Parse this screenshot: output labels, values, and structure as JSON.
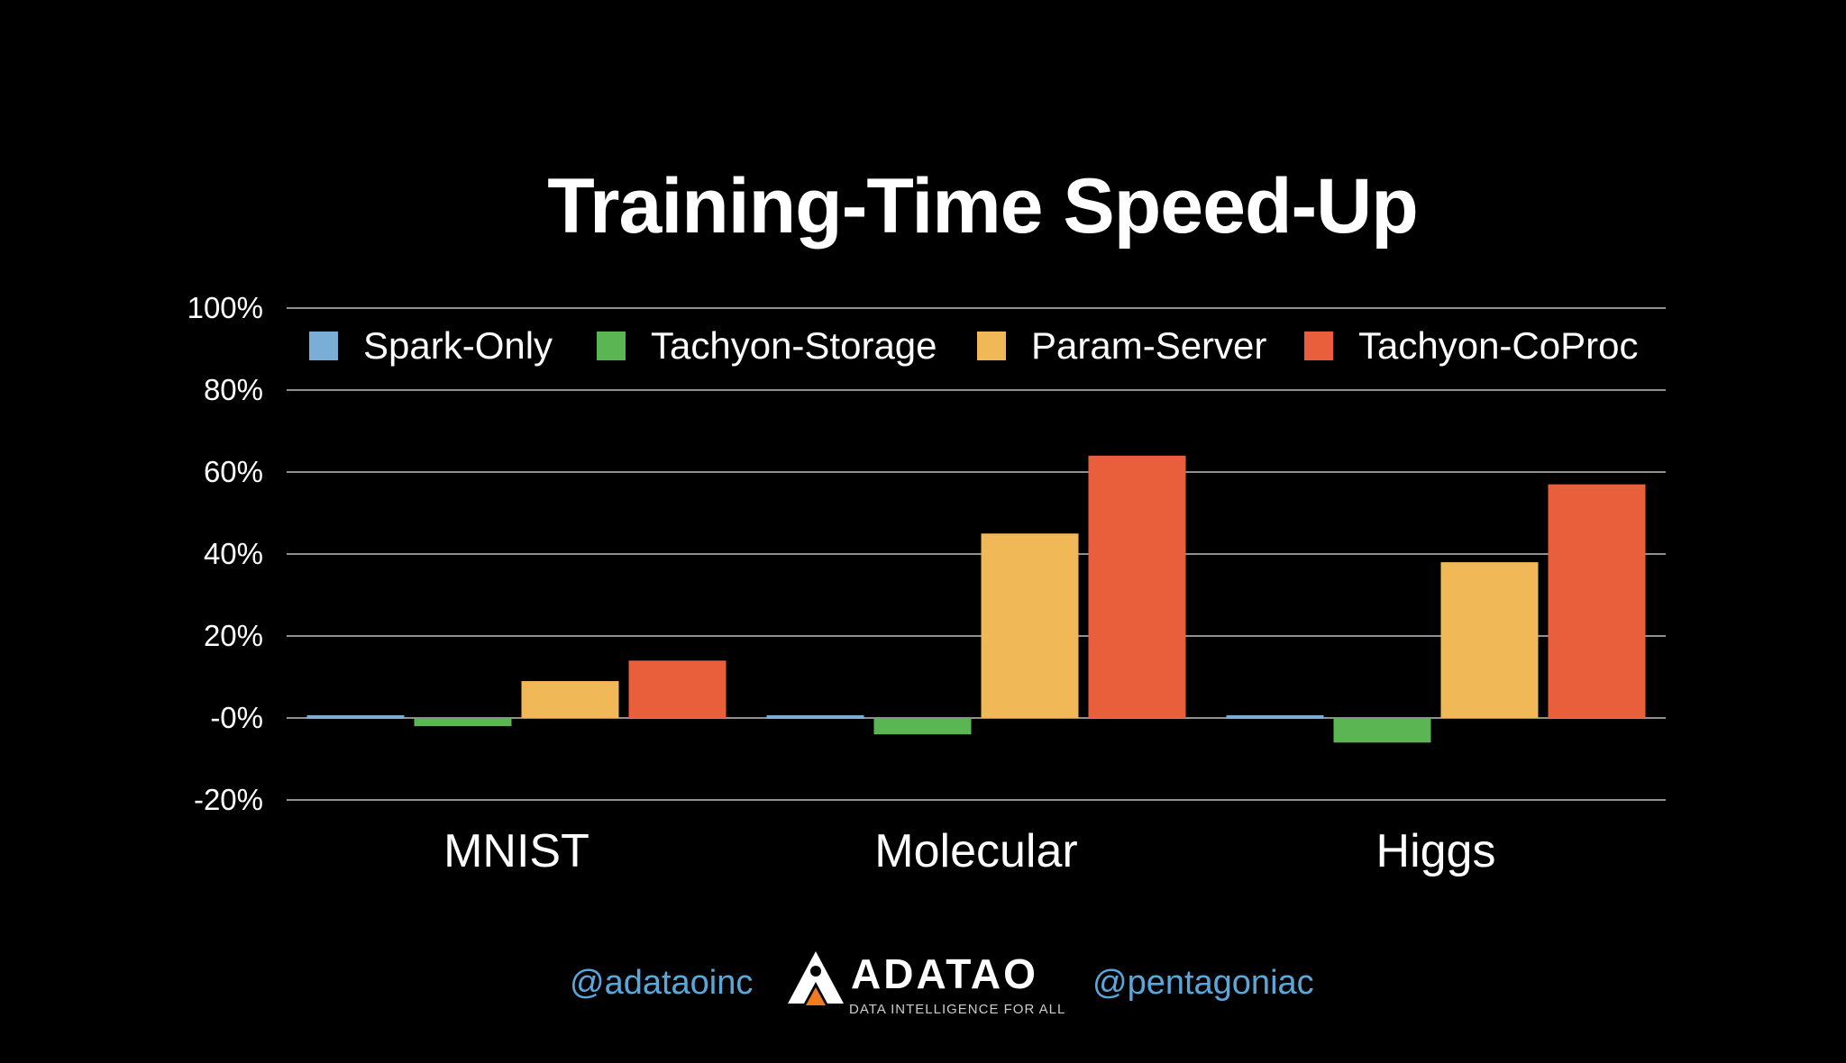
{
  "chart_data": {
    "type": "bar",
    "title": "Training-Time Speed-Up",
    "categories": [
      "MNIST",
      "Molecular",
      "Higgs"
    ],
    "series": [
      {
        "name": "Spark-Only",
        "color": "#7aaed6",
        "values": [
          0,
          0,
          0
        ]
      },
      {
        "name": "Tachyon-Storage",
        "color": "#5bb553",
        "values": [
          -2,
          -4,
          -6
        ]
      },
      {
        "name": "Param-Server",
        "color": "#f0b857",
        "values": [
          9,
          45,
          38
        ]
      },
      {
        "name": "Tachyon-CoProc",
        "color": "#ea5f3b",
        "values": [
          14,
          64,
          57
        ]
      }
    ],
    "y_ticks": [
      "100%",
      "80%",
      "60%",
      "40%",
      "20%",
      "-0%",
      "-20%"
    ],
    "y_tick_values": [
      100,
      80,
      60,
      40,
      20,
      0,
      -20
    ],
    "ylim": [
      -20,
      100
    ],
    "grid": true,
    "legend_position": "top"
  },
  "footer": {
    "left_handle": "@adataoinc",
    "right_handle": "@pentagoniac",
    "logo_text": "ADATAO",
    "logo_tagline": "DATA INTELLIGENCE FOR ALL"
  }
}
